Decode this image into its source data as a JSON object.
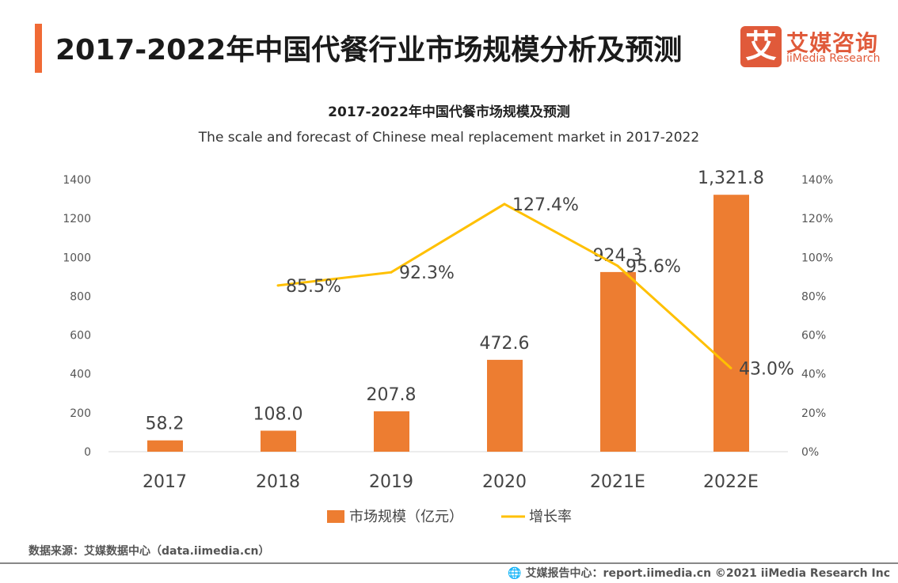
{
  "header": {
    "title": "2017-2022年中国代餐行业市场规模分析及预测"
  },
  "logo": {
    "mark": "艾",
    "cn": "艾媒咨询",
    "en": "iiMedia Research"
  },
  "chart_data": {
    "type": "bar+line",
    "title": "2017-2022年中国代餐市场规模及预测",
    "subtitle": "The scale and forecast of Chinese meal replacement market in 2017-2022",
    "categories": [
      "2017",
      "2018",
      "2019",
      "2020",
      "2021E",
      "2022E"
    ],
    "series": [
      {
        "name": "市场规模（亿元）",
        "type": "bar",
        "axis": "left",
        "color": "#ed7d31",
        "values": [
          58.2,
          108.0,
          207.8,
          472.6,
          924.3,
          1321.8
        ],
        "labels": [
          "58.2",
          "108.0",
          "207.8",
          "472.6",
          "924.3",
          "1,321.8"
        ]
      },
      {
        "name": "增长率",
        "type": "line",
        "axis": "right",
        "color": "#ffc000",
        "values": [
          null,
          85.5,
          92.3,
          127.4,
          95.6,
          43.0
        ],
        "labels": [
          "",
          "85.5%",
          "92.3%",
          "127.4%",
          "95.6%",
          "43.0%"
        ]
      }
    ],
    "left_axis": {
      "ylim": [
        0,
        1400
      ],
      "ticks": [
        "0",
        "200",
        "400",
        "600",
        "800",
        "1000",
        "1200",
        "1400"
      ]
    },
    "right_axis": {
      "ylim": [
        0,
        140
      ],
      "ticks": [
        "0%",
        "20%",
        "40%",
        "60%",
        "80%",
        "100%",
        "120%",
        "140%"
      ]
    },
    "grid": false,
    "legend": "bottom"
  },
  "footer": {
    "source": "数据来源：艾媒数据中心（data.iimedia.cn）",
    "credit": "艾媒报告中心：report.iimedia.cn   ©2021  iiMedia Research  Inc"
  }
}
